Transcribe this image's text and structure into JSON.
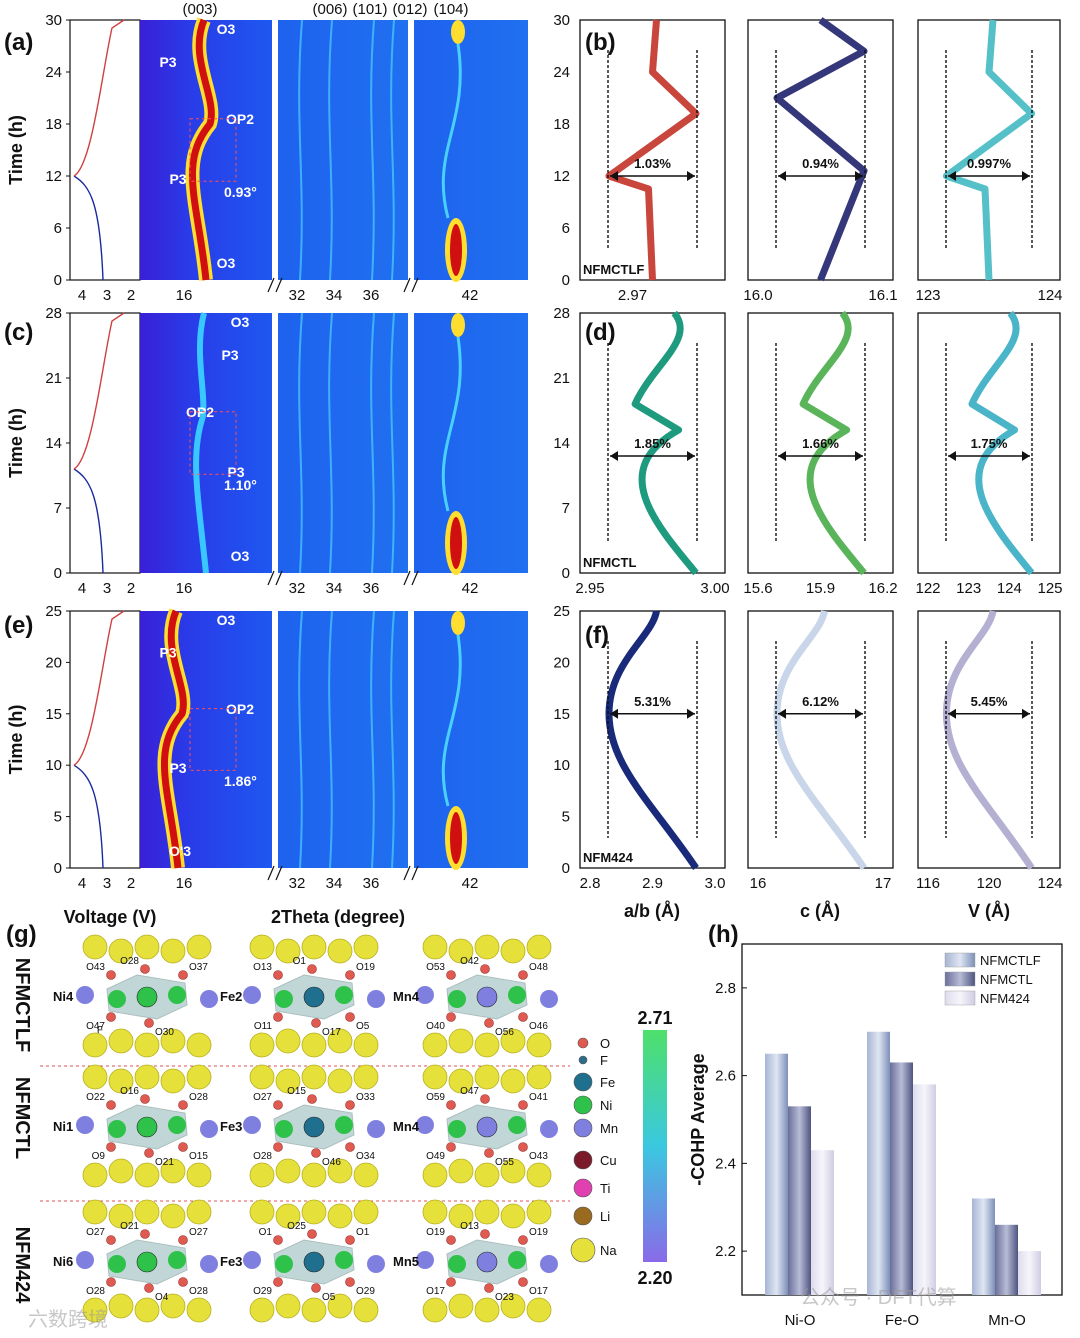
{
  "page": {
    "watermarks": [
      "公众号 · DFT代算",
      "六数跨境"
    ]
  },
  "panels": {
    "a": "(a)",
    "b": "(b)",
    "c": "(c)",
    "d": "(d)",
    "e": "(e)",
    "f": "(f)",
    "g": "(g)",
    "h": "(h)"
  },
  "xrd": {
    "peak_labels": [
      "(003)",
      "(006)",
      "(101)",
      "(012)",
      "(104)"
    ],
    "voltage_ticks": [
      "4",
      "3",
      "2"
    ],
    "two_theta_ticks": [
      "16",
      "32",
      "34",
      "36",
      "42"
    ],
    "xlabel_voltage": "Voltage (V)",
    "xlabel_2theta": "2Theta (degree)",
    "ylabel": "Time (h)",
    "rows": [
      {
        "sample": "NFMCTLF",
        "time_ticks": [
          "0",
          "6",
          "12",
          "18",
          "24",
          "30"
        ],
        "phase_labels": [
          "O3",
          "P3",
          "OP2",
          "P3",
          "O3"
        ],
        "shift": "0.93°"
      },
      {
        "sample": "NFMCTL",
        "time_ticks": [
          "0",
          "7",
          "14",
          "21",
          "28"
        ],
        "phase_labels": [
          "O3",
          "P3",
          "OP2",
          "P3",
          "O3"
        ],
        "shift": "1.10°"
      },
      {
        "sample": "NFM424",
        "time_ticks": [
          "0",
          "5",
          "10",
          "15",
          "20",
          "25"
        ],
        "phase_labels": [
          "O3",
          "P3",
          "OP2",
          "P3",
          "O'3"
        ],
        "shift": "1.86°"
      }
    ]
  },
  "lattice": {
    "xlabels": [
      "a/b (Å)",
      "c (Å)",
      "V (Å)"
    ],
    "rows": [
      {
        "sample": "NFMCTLF",
        "time_ticks": [
          "0",
          "6",
          "12",
          "18",
          "24",
          "30"
        ],
        "x_ticks": [
          [
            "2.97"
          ],
          [
            "16.0",
            "16.1"
          ],
          [
            "123",
            "124"
          ]
        ],
        "changes": [
          "1.03%",
          "0.94%",
          "0.997%"
        ],
        "colors": [
          "#c8463c",
          "#34377a",
          "#56c0c8"
        ]
      },
      {
        "sample": "NFMCTL",
        "time_ticks": [
          "0",
          "7",
          "14",
          "21",
          "28"
        ],
        "x_ticks": [
          [
            "2.95",
            "3.00"
          ],
          [
            "15.6",
            "15.9",
            "16.2"
          ],
          [
            "122",
            "123",
            "124",
            "125"
          ]
        ],
        "changes": [
          "1.85%",
          "1.66%",
          "1.75%"
        ],
        "colors": [
          "#1e9a7e",
          "#5ab45a",
          "#4ab4c8"
        ]
      },
      {
        "sample": "NFM424",
        "time_ticks": [
          "0",
          "5",
          "10",
          "15",
          "20",
          "25"
        ],
        "x_ticks": [
          [
            "2.8",
            "2.9",
            "3.0"
          ],
          [
            "16",
            "17"
          ],
          [
            "116",
            "120",
            "124"
          ]
        ],
        "changes": [
          "5.31%",
          "6.12%",
          "5.45%"
        ],
        "colors": [
          "#1a2a7a",
          "#c9d6ea",
          "#b3b0d2"
        ]
      }
    ]
  },
  "structures": {
    "samples": [
      "NFMCTLF",
      "NFMCTL",
      "NFM424"
    ],
    "rows": [
      {
        "cells": [
          {
            "center": "Ni4",
            "o_labels": [
              "O43",
              "O28",
              "O37",
              "O47",
              "O30"
            ],
            "extra": "F"
          },
          {
            "center": "Fe2",
            "o_labels": [
              "O13",
              "O1",
              "O19",
              "O11",
              "O17",
              "O5"
            ],
            "extra": ""
          },
          {
            "center": "Mn4",
            "o_labels": [
              "O53",
              "O42",
              "O48",
              "O40",
              "O56",
              "O46"
            ],
            "extra": ""
          }
        ]
      },
      {
        "cells": [
          {
            "center": "Ni1",
            "o_labels": [
              "O22",
              "O16",
              "O28",
              "O9",
              "O21",
              "O15"
            ],
            "extra": ""
          },
          {
            "center": "Fe3",
            "o_labels": [
              "O27",
              "O15",
              "O33",
              "O28",
              "O46",
              "O34"
            ],
            "extra": ""
          },
          {
            "center": "Mn4",
            "o_labels": [
              "O59",
              "O47",
              "O41",
              "O49",
              "O55",
              "O43"
            ],
            "extra": ""
          }
        ]
      },
      {
        "cells": [
          {
            "center": "Ni6",
            "o_labels": [
              "O27",
              "O21",
              "O27",
              "O28",
              "O4",
              "O28"
            ],
            "extra": ""
          },
          {
            "center": "Fe3",
            "o_labels": [
              "O1",
              "O25",
              "O1",
              "O29",
              "O5",
              "O29"
            ],
            "extra": ""
          },
          {
            "center": "Mn5",
            "o_labels": [
              "O19",
              "O13",
              "O19",
              "O17",
              "O23",
              "O17"
            ],
            "extra": ""
          }
        ]
      }
    ],
    "legend": [
      {
        "label": "O",
        "color": "#e05a50",
        "r": 5
      },
      {
        "label": "F",
        "color": "#2d6d8a",
        "r": 4
      },
      {
        "label": "Fe",
        "color": "#1f6f8f",
        "r": 9
      },
      {
        "label": "Ni",
        "color": "#2fc24a",
        "r": 9
      },
      {
        "label": "Mn",
        "color": "#7f7fe0",
        "r": 9
      },
      {
        "label": "Cu",
        "color": "#7a1a2a",
        "r": 9
      },
      {
        "label": "Ti",
        "color": "#e040b0",
        "r": 9
      },
      {
        "label": "Li",
        "color": "#9a6a20",
        "r": 9
      },
      {
        "label": "Na",
        "color": "#e5e03a",
        "r": 12
      }
    ],
    "colorbar": {
      "max": "2.71",
      "min": "2.20"
    }
  },
  "chart_data": {
    "type": "bar",
    "categories": [
      "Ni-O",
      "Fe-O",
      "Mn-O"
    ],
    "series": [
      {
        "name": "NFMCTLF",
        "values": [
          2.65,
          2.7,
          2.32
        ]
      },
      {
        "name": "NFMCTL",
        "values": [
          2.53,
          2.63,
          2.26
        ]
      },
      {
        "name": "NFM424",
        "values": [
          2.43,
          2.58,
          2.2
        ]
      }
    ],
    "series_colors": [
      "#7d8fb8",
      "#4e5480",
      "#cfcde3"
    ],
    "ylabel": "-COHP Average",
    "ylim": [
      2.1,
      2.9
    ],
    "yticks": [
      "2.2",
      "2.4",
      "2.6",
      "2.8"
    ],
    "legend_position": "top-right"
  }
}
